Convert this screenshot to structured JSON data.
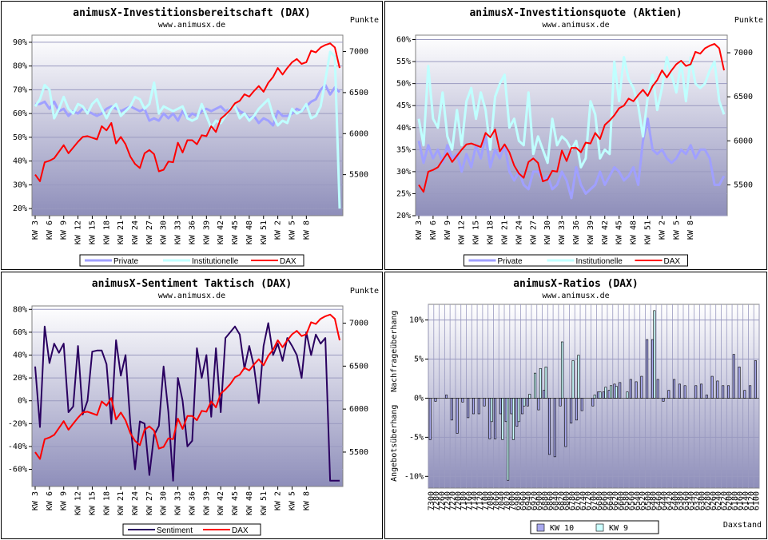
{
  "colors": {
    "private": "#a0a0ff",
    "institutional": "#c0ffff",
    "dax": "#ff0000",
    "sentiment": "#2a0060",
    "kw10": "#a8a8ee",
    "kw9": "#ccffff"
  },
  "chart_data": [
    {
      "type": "line",
      "title": "animusX-Investitionsbereitschaft (DAX)",
      "subtitle": "www.animusx.de",
      "y2_unit": "Punkte",
      "x_ticks": [
        "KW 3",
        "KW 6",
        "KW 9",
        "KW 12",
        "KW 15",
        "KW 18",
        "KW 21",
        "KW 24",
        "KW 27",
        "KW 30",
        "KW 33",
        "KW 36",
        "KW 39",
        "KW 42",
        "KW 45",
        "KW 48",
        "KW 51",
        "KW 2",
        "KW 5",
        "KW 8"
      ],
      "y_ticks": [
        "20%",
        "30%",
        "40%",
        "50%",
        "60%",
        "70%",
        "80%",
        "90%"
      ],
      "y_range": [
        17,
        93
      ],
      "y2_ticks": [
        "5500",
        "6000",
        "6500",
        "7000"
      ],
      "y2_range": [
        5000,
        7200
      ],
      "legend": [
        "Private",
        "Institutionelle",
        "DAX"
      ],
      "series": [
        {
          "name": "Private",
          "axis": "left",
          "colorKey": "private",
          "width": 3,
          "values": [
            64,
            64,
            65,
            62,
            65,
            61,
            62,
            59,
            61,
            60,
            62,
            61,
            60,
            59,
            60,
            62,
            63,
            62,
            61,
            62,
            63,
            62,
            61,
            62,
            57,
            58,
            57,
            60,
            58,
            60,
            57,
            61,
            58,
            60,
            59,
            61,
            62,
            61,
            62,
            63,
            61,
            62,
            63,
            61,
            60,
            58,
            59,
            56,
            58,
            57,
            55,
            61,
            59,
            59,
            60,
            62,
            61,
            63,
            65,
            66,
            70,
            72,
            68,
            71,
            69
          ]
        },
        {
          "name": "Institutionelle",
          "axis": "left",
          "colorKey": "institutional",
          "width": 3,
          "values": [
            63,
            66,
            72,
            70,
            58,
            62,
            67,
            62,
            60,
            64,
            63,
            60,
            64,
            66,
            62,
            58,
            62,
            64,
            59,
            61,
            63,
            67,
            66,
            62,
            64,
            73,
            60,
            63,
            62,
            61,
            62,
            63,
            58,
            57,
            58,
            64,
            59,
            54,
            57,
            56,
            59,
            62,
            63,
            58,
            60,
            57,
            59,
            62,
            64,
            66,
            59,
            55,
            57,
            56,
            62,
            60,
            61,
            64,
            58,
            59,
            63,
            74,
            86,
            84,
            20
          ]
        },
        {
          "name": "DAX",
          "axis": "right",
          "colorKey": "dax",
          "width": 2,
          "values": [
            5500,
            5420,
            5650,
            5670,
            5700,
            5780,
            5860,
            5760,
            5830,
            5900,
            5960,
            5970,
            5950,
            5930,
            6090,
            6040,
            6130,
            5880,
            5960,
            5870,
            5720,
            5630,
            5580,
            5760,
            5800,
            5750,
            5540,
            5560,
            5660,
            5650,
            5890,
            5770,
            5920,
            5920,
            5870,
            5980,
            5970,
            6090,
            6020,
            6180,
            6230,
            6290,
            6370,
            6400,
            6480,
            6450,
            6520,
            6580,
            6510,
            6620,
            6690,
            6800,
            6720,
            6800,
            6870,
            6910,
            6850,
            6870,
            7010,
            6990,
            7050,
            7080,
            7100,
            7050,
            6800
          ]
        }
      ]
    },
    {
      "type": "line",
      "title": "animusX-Investitionsquote (Aktien)",
      "subtitle": "www.animusx.de",
      "y2_unit": "Punkte",
      "x_ticks": [
        "KW 3",
        "KW 6",
        "KW 9",
        "KW 12",
        "KW 15",
        "KW 18",
        "KW 21",
        "KW 24",
        "KW 27",
        "KW 30",
        "KW 33",
        "KW 36",
        "KW 39",
        "KW 42",
        "KW 45",
        "KW 48",
        "KW 51",
        "KW 2",
        "KW 5",
        "KW 8"
      ],
      "y_ticks": [
        "20%",
        "25%",
        "30%",
        "35%",
        "40%",
        "45%",
        "50%",
        "55%",
        "60%"
      ],
      "y_range": [
        20,
        61
      ],
      "y2_ticks": [
        "5500",
        "6000",
        "6500",
        "7000"
      ],
      "y2_range": [
        5150,
        7200
      ],
      "legend": [
        "Private",
        "Institutionelle",
        "DAX"
      ],
      "series": [
        {
          "name": "Private",
          "axis": "left",
          "colorKey": "private",
          "width": 3,
          "values": [
            37,
            32,
            36,
            33,
            35,
            32,
            36,
            33,
            34,
            30,
            34,
            31,
            36,
            33,
            38,
            31,
            35,
            33,
            36,
            30,
            28,
            30,
            27,
            26,
            30,
            30,
            28,
            29,
            26,
            27,
            30,
            28,
            24,
            31,
            27,
            25,
            26,
            27,
            30,
            27,
            29,
            31,
            30,
            28,
            29,
            31,
            27,
            37,
            42,
            35,
            34,
            35,
            33,
            32,
            33,
            35,
            34,
            36,
            33,
            35,
            35,
            33,
            27,
            27,
            29
          ]
        },
        {
          "name": "Institutionelle",
          "axis": "left",
          "colorKey": "institutional",
          "width": 3,
          "values": [
            42,
            36,
            54,
            42,
            40,
            48,
            38,
            35,
            44,
            36,
            46,
            49,
            42,
            48,
            44,
            35,
            47,
            50,
            52,
            40,
            42,
            37,
            36,
            48,
            34,
            38,
            35,
            32,
            42,
            36,
            38,
            37,
            35,
            37,
            31,
            33,
            46,
            43,
            33,
            35,
            34,
            55,
            46,
            56,
            51,
            49,
            45,
            38,
            47,
            52,
            44,
            49,
            56,
            52,
            48,
            55,
            46,
            56,
            50,
            49,
            50,
            53,
            55,
            46,
            43
          ]
        },
        {
          "name": "DAX",
          "axis": "right",
          "colorKey": "dax",
          "width": 2,
          "values": [
            5500,
            5420,
            5650,
            5670,
            5700,
            5780,
            5860,
            5760,
            5830,
            5900,
            5960,
            5970,
            5950,
            5930,
            6090,
            6040,
            6130,
            5880,
            5960,
            5870,
            5720,
            5630,
            5580,
            5760,
            5800,
            5750,
            5540,
            5560,
            5660,
            5650,
            5890,
            5770,
            5920,
            5920,
            5870,
            5980,
            5970,
            6090,
            6020,
            6180,
            6230,
            6290,
            6370,
            6400,
            6480,
            6450,
            6520,
            6580,
            6510,
            6620,
            6690,
            6800,
            6720,
            6800,
            6870,
            6910,
            6850,
            6870,
            7010,
            6990,
            7050,
            7080,
            7100,
            7050,
            6800
          ]
        }
      ]
    },
    {
      "type": "line",
      "title": "animusX-Sentiment Taktisch (DAX)",
      "subtitle": "www.animusx.de",
      "y2_unit": "Punkte",
      "x_ticks": [
        "KW 3",
        "KW 6",
        "KW 9",
        "KW 12",
        "KW 15",
        "KW 18",
        "KW 21",
        "KW 24",
        "KW 27",
        "KW 30",
        "KW 33",
        "KW 36",
        "KW 39",
        "KW 42",
        "KW 45",
        "KW 48",
        "KW 51",
        "KW 2",
        "KW 5",
        "KW 8"
      ],
      "y_ticks": [
        "-60%",
        "-40%",
        "-20%",
        "0%",
        "20%",
        "40%",
        "60%",
        "80%"
      ],
      "y_range": [
        -75,
        83
      ],
      "y2_ticks": [
        "5500",
        "6000",
        "6500",
        "7000"
      ],
      "y2_range": [
        5100,
        7200
      ],
      "legend": [
        "Sentiment",
        "DAX"
      ],
      "series": [
        {
          "name": "Sentiment",
          "axis": "left",
          "colorKey": "sentiment",
          "width": 2,
          "values": [
            30,
            -23,
            65,
            33,
            50,
            42,
            50,
            -10,
            -5,
            48,
            -12,
            0,
            43,
            44,
            44,
            32,
            -20,
            53,
            22,
            40,
            -20,
            -60,
            -18,
            -20,
            -65,
            -30,
            -22,
            30,
            -10,
            -70,
            20,
            0,
            -40,
            -35,
            46,
            20,
            40,
            -14,
            46,
            -10,
            55,
            60,
            65,
            58,
            28,
            48,
            30,
            -2,
            48,
            68,
            40,
            50,
            35,
            55,
            48,
            40,
            20,
            60,
            40,
            58,
            50,
            55,
            -70,
            -70,
            -70
          ]
        },
        {
          "name": "DAX",
          "axis": "right",
          "colorKey": "dax",
          "width": 2,
          "values": [
            5500,
            5420,
            5650,
            5670,
            5700,
            5780,
            5860,
            5760,
            5830,
            5900,
            5960,
            5970,
            5950,
            5930,
            6090,
            6040,
            6130,
            5880,
            5960,
            5870,
            5720,
            5630,
            5580,
            5760,
            5800,
            5750,
            5540,
            5560,
            5660,
            5650,
            5890,
            5770,
            5920,
            5920,
            5870,
            5980,
            5970,
            6090,
            6020,
            6180,
            6230,
            6290,
            6370,
            6400,
            6480,
            6450,
            6520,
            6580,
            6510,
            6620,
            6690,
            6800,
            6720,
            6800,
            6870,
            6910,
            6850,
            6870,
            7010,
            6990,
            7050,
            7080,
            7100,
            7050,
            6800
          ]
        }
      ]
    },
    {
      "type": "bar",
      "title": "animusX-Ratios (DAX)",
      "subtitle": "www.animusx.de",
      "y_axis_top_label": "Nachfrageüberhang",
      "y_axis_bottom_label": "Angebotsüberhang",
      "xlabel": "Daxstand",
      "y_ticks": [
        "10%",
        "5%",
        "0%",
        "-5%",
        "-10%"
      ],
      "y_range": [
        -11.5,
        12
      ],
      "legend": [
        "KW 10",
        "KW 9"
      ],
      "categories": [
        "7300",
        "7280",
        "7260",
        "7240",
        "7220",
        "7200",
        "7180",
        "7160",
        "7140",
        "7120",
        "7100",
        "7080",
        "7060",
        "7040",
        "7020",
        "7000",
        "6980",
        "6960",
        "6940",
        "6920",
        "6900",
        "6880",
        "6860",
        "6840",
        "6820",
        "6800",
        "6780",
        "6760",
        "6740",
        "6720",
        "6700",
        "6680",
        "6660",
        "6640",
        "6620",
        "6600",
        "6580",
        "6560",
        "6540",
        "6520",
        "6500",
        "6480",
        "6460",
        "6440",
        "6420",
        "6400",
        "6380",
        "6360",
        "6340",
        "6320",
        "6300",
        "6280",
        "6260",
        "6240",
        "6220",
        "6200",
        "6180",
        "6160",
        "6140",
        "6120",
        "6100"
      ],
      "series": [
        {
          "name": "KW 10",
          "colorKey": "kw10",
          "values": [
            -5.3,
            -0.4,
            0,
            0.4,
            -2.8,
            -4.5,
            -0.5,
            -2.5,
            -2,
            -2,
            -1,
            -5.2,
            -5.2,
            -2,
            -3,
            -2,
            -3.6,
            -2,
            -1,
            0,
            -1.5,
            1,
            -7.2,
            -7.5,
            -1,
            -6.2,
            -3.2,
            -2.8,
            -1.6,
            0,
            -1,
            0.8,
            0.8,
            1,
            1.8,
            2,
            0,
            2.4,
            2.1,
            2.8,
            7.5,
            7.5,
            2.4,
            -0.4,
            1,
            2.4,
            1.8,
            1.6,
            0,
            1.6,
            1.8,
            0.4,
            2.8,
            2.2,
            1.6,
            1.6,
            5.6,
            4,
            1,
            1.6,
            4.8
          ]
        },
        {
          "name": "KW 9",
          "colorKey": "kw9",
          "values": [
            0,
            0,
            0,
            0,
            0,
            0,
            0,
            0,
            0,
            0,
            0,
            -3,
            0,
            -5.3,
            -10.5,
            -5.3,
            -3,
            -1,
            0.5,
            3.2,
            3.8,
            4,
            0,
            0,
            7.2,
            0,
            4.8,
            5.5,
            0,
            0,
            0.4,
            0.8,
            1.4,
            1.6,
            1.5,
            0,
            0.8,
            0,
            0,
            0,
            0,
            11.2,
            0,
            0,
            0,
            0,
            0,
            0,
            0,
            0,
            0,
            0,
            0,
            0,
            0,
            0,
            0,
            0,
            0,
            0,
            0
          ]
        }
      ]
    }
  ]
}
